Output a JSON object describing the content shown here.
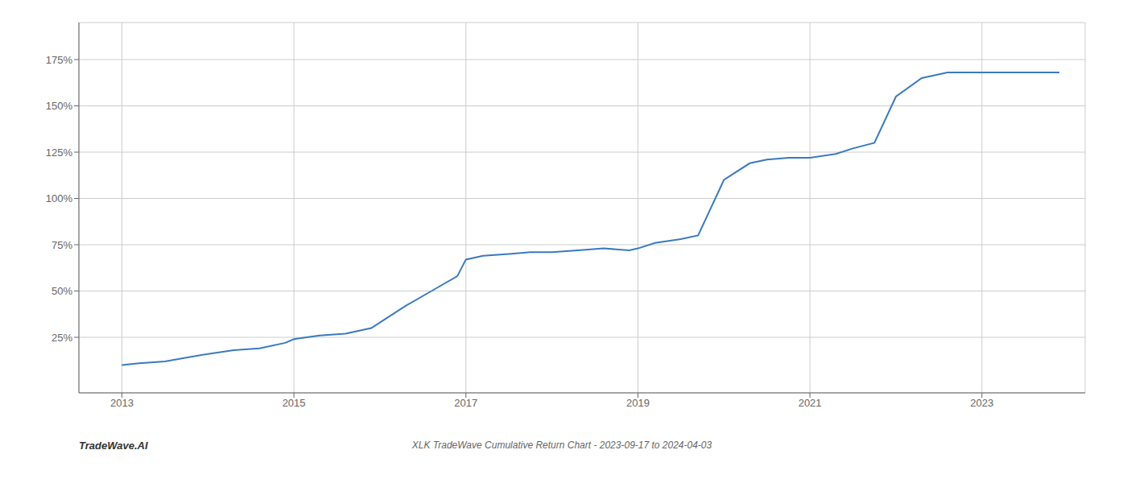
{
  "chart_data": {
    "type": "line",
    "title": "XLK TradeWave Cumulative Return Chart - 2023-09-17 to 2024-04-03",
    "annotations": [
      "TradeWave.AI"
    ],
    "color": "#3a7abf",
    "grid": true,
    "x": [
      2013.0,
      2013.2,
      2013.5,
      2013.75,
      2014.0,
      2014.3,
      2014.6,
      2014.9,
      2015.0,
      2015.3,
      2015.6,
      2015.9,
      2016.0,
      2016.3,
      2016.6,
      2016.9,
      2017.0,
      2017.2,
      2017.5,
      2017.75,
      2018.0,
      2018.3,
      2018.6,
      2018.9,
      2019.0,
      2019.2,
      2019.5,
      2019.7,
      2020.0,
      2020.3,
      2020.5,
      2020.75,
      2021.0,
      2021.3,
      2021.5,
      2021.75,
      2022.0,
      2022.3,
      2022.6,
      2023.0,
      2023.5,
      2023.9
    ],
    "values": [
      10,
      11,
      12,
      14,
      16,
      18,
      19,
      22,
      24,
      26,
      27,
      30,
      33,
      42,
      50,
      58,
      67,
      69,
      70,
      71,
      71,
      72,
      73,
      72,
      73,
      76,
      78,
      80,
      110,
      119,
      121,
      122,
      122,
      124,
      127,
      130,
      155,
      165,
      168,
      168,
      168,
      168
    ],
    "xlim": [
      2012.5,
      2024.2
    ],
    "ylim": [
      -5,
      195
    ],
    "xticks": [
      2013,
      2015,
      2017,
      2019,
      2021,
      2023
    ],
    "yticks": [
      {
        "value": 25,
        "label": "25%"
      },
      {
        "value": 50,
        "label": "50%"
      },
      {
        "value": 75,
        "label": "75%"
      },
      {
        "value": 100,
        "label": "100%"
      },
      {
        "value": 125,
        "label": "125%"
      },
      {
        "value": 150,
        "label": "150%"
      },
      {
        "value": 175,
        "label": "175%"
      }
    ]
  }
}
